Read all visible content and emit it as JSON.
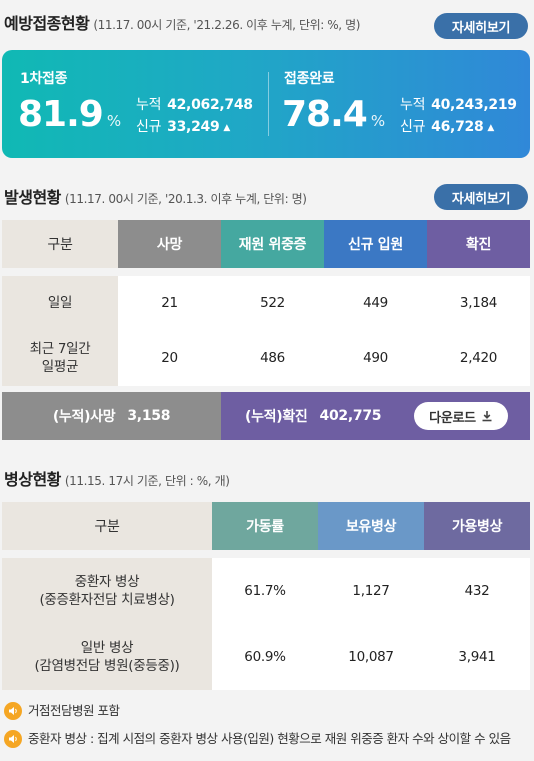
{
  "vaccination": {
    "title": "예방접종현황",
    "note": "(11.17. 00시 기준, '21.2.26. 이후 누계, 단위: %, 명)",
    "detail_button": "자세히보기",
    "first_dose": {
      "label": "1차접종",
      "rate": "81.9",
      "unit": "%",
      "cumulative_label": "누적",
      "cumulative": "42,062,748",
      "new_label": "신규",
      "new": "33,249"
    },
    "completed": {
      "label": "접종완료",
      "rate": "78.4",
      "unit": "%",
      "cumulative_label": "누적",
      "cumulative": "40,243,219",
      "new_label": "신규",
      "new": "46,728"
    }
  },
  "outbreak": {
    "title": "발생현황",
    "note": "(11.17. 00시 기준, '20.1.3. 이후 누계, 단위: 명)",
    "detail_button": "자세히보기",
    "headers": [
      "구분",
      "사망",
      "재원 위중증",
      "신규 입원",
      "확진"
    ],
    "header_colors": [
      "#eae6e0",
      "#8d8d8d",
      "#45a8a0",
      "#3b78c4",
      "#6e5ea2"
    ],
    "rows": [
      {
        "label": "일일",
        "values": [
          "21",
          "522",
          "449",
          "3,184"
        ]
      },
      {
        "label": "최근 7일간\n일평균",
        "values": [
          "20",
          "486",
          "490",
          "2,420"
        ]
      }
    ],
    "totals": {
      "deaths_label": "(누적)사망",
      "deaths": "3,158",
      "confirmed_label": "(누적)확진",
      "confirmed": "402,775",
      "download_button": "다운로드"
    }
  },
  "beds": {
    "title": "병상현황",
    "note": "(11.15. 17시 기준, 단위 : %, 개)",
    "headers": [
      "구분",
      "가동률",
      "보유병상",
      "가용병상"
    ],
    "header_colors": [
      "#eae6e0",
      "#6fa79e",
      "#6a98c8",
      "#6e6aa0"
    ],
    "rows": [
      {
        "label": "중환자 병상\n(중증환자전담 치료병상)",
        "values": [
          "61.7%",
          "1,127",
          "432"
        ]
      },
      {
        "label": "일반 병상\n(감염병전담 병원(중등중))",
        "values": [
          "60.9%",
          "10,087",
          "3,941"
        ]
      }
    ],
    "notes": [
      "거점전담병원 포함",
      "중환자 병상 : 집계 시점의 중환자 병상 사용(입원) 현황으로 재원 위중증 환자 수와 상이할 수 있음"
    ]
  },
  "icons": {
    "arrow_up": "triangle-up-icon",
    "download": "download-icon",
    "speaker": "speaker-icon"
  }
}
